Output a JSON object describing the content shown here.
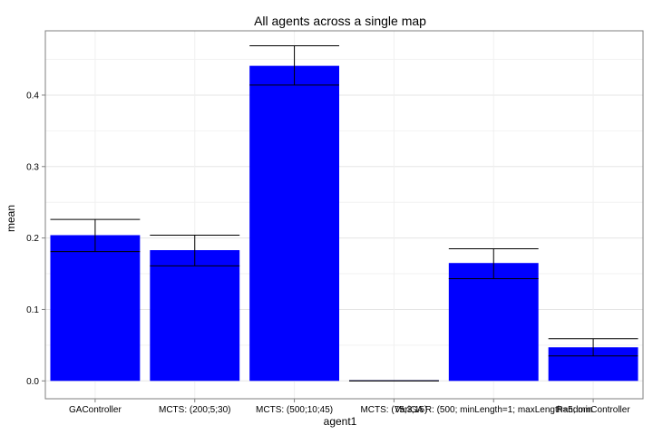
{
  "chart_data": {
    "type": "bar",
    "title": "All agents across a single map",
    "xlabel": "agent1",
    "ylabel": "mean",
    "categories": [
      "GAController",
      "MCTS: (200;5;30)",
      "MCTS: (500;10;45)",
      "MCTS: (75;3;15)",
      "VariGA R: (500; minLength=1; maxLength=5; min",
      "RandomController"
    ],
    "values": [
      0.204,
      0.183,
      0.441,
      0.0,
      0.165,
      0.047
    ],
    "error_upper": [
      0.226,
      0.204,
      0.469,
      0.0,
      0.185,
      0.059
    ],
    "error_lower": [
      0.181,
      0.161,
      0.414,
      0.0,
      0.143,
      0.035
    ],
    "yticks": [
      0.0,
      0.1,
      0.2,
      0.3,
      0.4
    ],
    "ytick_labels": [
      "0.0",
      "0.1",
      "0.2",
      "0.3",
      "0.4"
    ],
    "ylim": [
      -0.025,
      0.49
    ],
    "grid": true,
    "bar_color": "#0000ff",
    "error_color": "#000000"
  }
}
